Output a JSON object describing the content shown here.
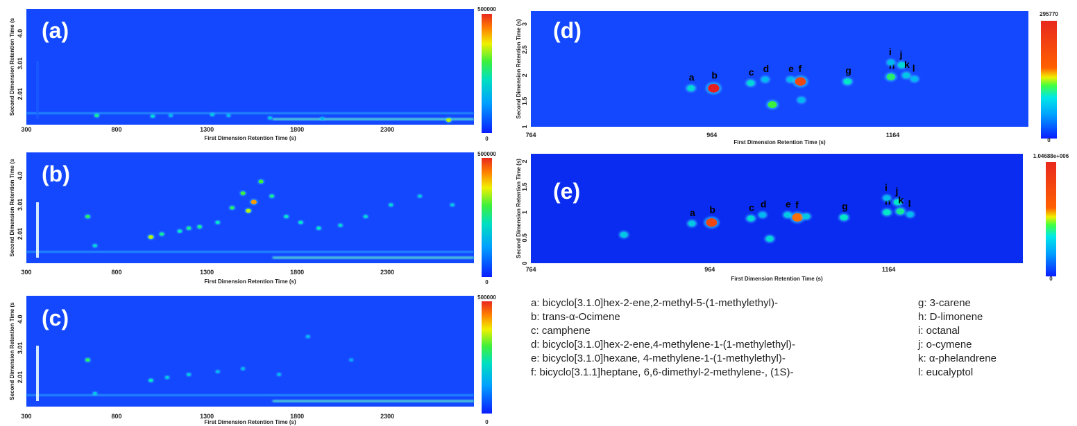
{
  "colors": {
    "background_low": "#0a3cff",
    "scale_high": "#e8281e"
  },
  "legend": {
    "a": "a: bicyclo[3.1.0]hex-2-ene,2-methyl-5-(1-methylethyl)-",
    "b": "b: trans-α-Ocimene",
    "c": "c: camphene",
    "d": "d: bicyclo[3.1.0]hex-2-ene,4-methylene-1-(1-methylethyl)-",
    "e": "e: bicyclo[3.1.0]hexane, 4-methylene-1-(1-methylethyl)-",
    "f": "f:  bicyclo[3.1.1]heptane, 6,6-dimethyl-2-methylene-, (1S)-",
    "g": "g: 3-carene",
    "h": "h: D-limonene",
    "i": "i:  octanal",
    "j": "j:  o-cymene",
    "k": "k: α-phelandrene",
    "l": "l:  eucalyptol"
  },
  "chart_data": [
    {
      "type": "heatmap",
      "panel_label": "(a)",
      "xlabel": "First Dimension Retention Time (s)",
      "ylabel": "Second Dimension Retention Time (s",
      "x_ticks": [
        "300",
        "800",
        "1300",
        "1800",
        "2300"
      ],
      "y_ticks": [
        "2.01",
        "3.01",
        "4.0"
      ],
      "xlim": [
        300,
        2780
      ],
      "ylim": [
        1.0,
        4.8
      ],
      "colorbar": {
        "max_label": "500000",
        "min_label": "0"
      },
      "peaks": [
        {
          "x": 690,
          "y": 1.3,
          "intensity": 0.5
        },
        {
          "x": 1000,
          "y": 1.28,
          "intensity": 0.4
        },
        {
          "x": 1100,
          "y": 1.3,
          "intensity": 0.3
        },
        {
          "x": 1330,
          "y": 1.33,
          "intensity": 0.35
        },
        {
          "x": 1420,
          "y": 1.3,
          "intensity": 0.3
        },
        {
          "x": 1650,
          "y": 1.22,
          "intensity": 0.35
        },
        {
          "x": 1940,
          "y": 1.2,
          "intensity": 0.3
        },
        {
          "x": 2640,
          "y": 1.15,
          "intensity": 0.7
        }
      ]
    },
    {
      "type": "heatmap",
      "panel_label": "(b)",
      "xlabel": "First Dimension Retention Time (s)",
      "ylabel": "Second Dimension Retention Time (s",
      "x_ticks": [
        "300",
        "800",
        "1300",
        "1800",
        "2300"
      ],
      "y_ticks": [
        "2.01",
        "3.01",
        "4.0"
      ],
      "xlim": [
        300,
        2780
      ],
      "ylim": [
        1.0,
        4.8
      ],
      "colorbar": {
        "max_label": "500000",
        "min_label": "0"
      },
      "peaks": [
        {
          "x": 640,
          "y": 2.6,
          "intensity": 0.55
        },
        {
          "x": 680,
          "y": 1.6,
          "intensity": 0.4
        },
        {
          "x": 990,
          "y": 1.9,
          "intensity": 0.7
        },
        {
          "x": 1050,
          "y": 2.0,
          "intensity": 0.5
        },
        {
          "x": 1150,
          "y": 2.1,
          "intensity": 0.45
        },
        {
          "x": 1200,
          "y": 2.2,
          "intensity": 0.5
        },
        {
          "x": 1260,
          "y": 2.25,
          "intensity": 0.5
        },
        {
          "x": 1360,
          "y": 2.4,
          "intensity": 0.45
        },
        {
          "x": 1440,
          "y": 2.9,
          "intensity": 0.55
        },
        {
          "x": 1500,
          "y": 3.4,
          "intensity": 0.6
        },
        {
          "x": 1530,
          "y": 2.8,
          "intensity": 0.7
        },
        {
          "x": 1560,
          "y": 3.1,
          "intensity": 0.85
        },
        {
          "x": 1600,
          "y": 3.8,
          "intensity": 0.6
        },
        {
          "x": 1660,
          "y": 3.3,
          "intensity": 0.5
        },
        {
          "x": 1740,
          "y": 2.6,
          "intensity": 0.45
        },
        {
          "x": 1820,
          "y": 2.4,
          "intensity": 0.45
        },
        {
          "x": 1920,
          "y": 2.2,
          "intensity": 0.45
        },
        {
          "x": 2040,
          "y": 2.3,
          "intensity": 0.4
        },
        {
          "x": 2180,
          "y": 2.6,
          "intensity": 0.4
        },
        {
          "x": 2320,
          "y": 3.0,
          "intensity": 0.4
        },
        {
          "x": 2480,
          "y": 3.3,
          "intensity": 0.35
        },
        {
          "x": 2660,
          "y": 3.0,
          "intensity": 0.35
        }
      ]
    },
    {
      "type": "heatmap",
      "panel_label": "(c)",
      "xlabel": "First Dimension Retention Time (s)",
      "ylabel": "Second Dimension Retention Time (s",
      "x_ticks": [
        "300",
        "800",
        "1300",
        "1800",
        "2300"
      ],
      "y_ticks": [
        "2.01",
        "3.01",
        "4.0"
      ],
      "xlim": [
        300,
        2780
      ],
      "ylim": [
        1.0,
        4.8
      ],
      "colorbar": {
        "max_label": "500000",
        "min_label": "0"
      },
      "peaks": [
        {
          "x": 640,
          "y": 2.6,
          "intensity": 0.55
        },
        {
          "x": 680,
          "y": 1.45,
          "intensity": 0.35
        },
        {
          "x": 990,
          "y": 1.9,
          "intensity": 0.45
        },
        {
          "x": 1080,
          "y": 2.0,
          "intensity": 0.35
        },
        {
          "x": 1200,
          "y": 2.1,
          "intensity": 0.35
        },
        {
          "x": 1360,
          "y": 2.2,
          "intensity": 0.3
        },
        {
          "x": 1500,
          "y": 2.3,
          "intensity": 0.3
        },
        {
          "x": 1700,
          "y": 2.1,
          "intensity": 0.3
        },
        {
          "x": 1860,
          "y": 3.4,
          "intensity": 0.3
        },
        {
          "x": 2100,
          "y": 2.6,
          "intensity": 0.25
        }
      ]
    },
    {
      "type": "heatmap",
      "panel_label": "(d)",
      "xlabel": "First Dimension Retention Time (s)",
      "ylabel": "Second Dimension Retention Time (s)",
      "x_ticks": [
        "764",
        "964",
        "1164"
      ],
      "y_ticks": [
        "1",
        "1.5",
        "2",
        "2.5",
        "3"
      ],
      "xlim": [
        764,
        1314
      ],
      "ylim": [
        1.0,
        3.25
      ],
      "colorbar": {
        "max_label": "295770",
        "min_label": "0"
      },
      "peaks": [
        {
          "label": "a",
          "x": 941,
          "y": 1.75,
          "intensity": 0.4
        },
        {
          "label": "b",
          "x": 966,
          "y": 1.75,
          "intensity": 1.0
        },
        {
          "label": "c",
          "x": 1007,
          "y": 1.85,
          "intensity": 0.4
        },
        {
          "label": "d",
          "x": 1023,
          "y": 1.92,
          "intensity": 0.3
        },
        {
          "label": "e",
          "x": 1051,
          "y": 1.92,
          "intensity": 0.3
        },
        {
          "label": "f",
          "x": 1062,
          "y": 1.88,
          "intensity": 0.95
        },
        {
          "label": "g",
          "x": 1114,
          "y": 1.88,
          "intensity": 0.45
        },
        {
          "label": "h",
          "x": 1162,
          "y": 1.97,
          "intensity": 0.55
        },
        {
          "label": "i",
          "x": 1162,
          "y": 2.25,
          "intensity": 0.3
        },
        {
          "label": "j",
          "x": 1174,
          "y": 2.2,
          "intensity": 0.4
        },
        {
          "label": "k",
          "x": 1179,
          "y": 2.0,
          "intensity": 0.35
        },
        {
          "label": "l",
          "x": 1188,
          "y": 1.93,
          "intensity": 0.3
        },
        {
          "x": 1031,
          "y": 1.43,
          "intensity": 0.6
        },
        {
          "x": 1063,
          "y": 1.52,
          "intensity": 0.3
        }
      ]
    },
    {
      "type": "heatmap",
      "panel_label": "(e)",
      "xlabel": "First Dimension Retention Time (s)",
      "ylabel": "Second Dimension Retention Time (s)",
      "x_ticks": [
        "764",
        "964",
        "1164"
      ],
      "y_ticks": [
        "0",
        "0.5",
        "1",
        "1.5",
        "2"
      ],
      "xlim": [
        764,
        1314
      ],
      "ylim": [
        0,
        2.15
      ],
      "colorbar": {
        "max_label": "1.04688e+006",
        "min_label": "0"
      },
      "peaks": [
        {
          "label": "a",
          "x": 944,
          "y": 0.78,
          "intensity": 0.35
        },
        {
          "label": "b",
          "x": 966,
          "y": 0.8,
          "intensity": 0.95
        },
        {
          "label": "c",
          "x": 1010,
          "y": 0.88,
          "intensity": 0.4
        },
        {
          "label": "d",
          "x": 1023,
          "y": 0.95,
          "intensity": 0.3
        },
        {
          "label": "e",
          "x": 1051,
          "y": 0.95,
          "intensity": 0.35
        },
        {
          "label": "f",
          "x": 1062,
          "y": 0.9,
          "intensity": 0.9
        },
        {
          "label": "g",
          "x": 1114,
          "y": 0.9,
          "intensity": 0.45
        },
        {
          "label": "h",
          "x": 1162,
          "y": 1.0,
          "intensity": 0.45
        },
        {
          "label": "i",
          "x": 1162,
          "y": 1.28,
          "intensity": 0.3
        },
        {
          "label": "j",
          "x": 1174,
          "y": 1.2,
          "intensity": 0.45
        },
        {
          "label": "k",
          "x": 1177,
          "y": 1.02,
          "intensity": 0.5
        },
        {
          "label": "l",
          "x": 1188,
          "y": 0.96,
          "intensity": 0.3
        },
        {
          "x": 868,
          "y": 0.56,
          "intensity": 0.35
        },
        {
          "x": 1031,
          "y": 0.48,
          "intensity": 0.4
        },
        {
          "x": 1072,
          "y": 0.92,
          "intensity": 0.35
        }
      ]
    }
  ]
}
